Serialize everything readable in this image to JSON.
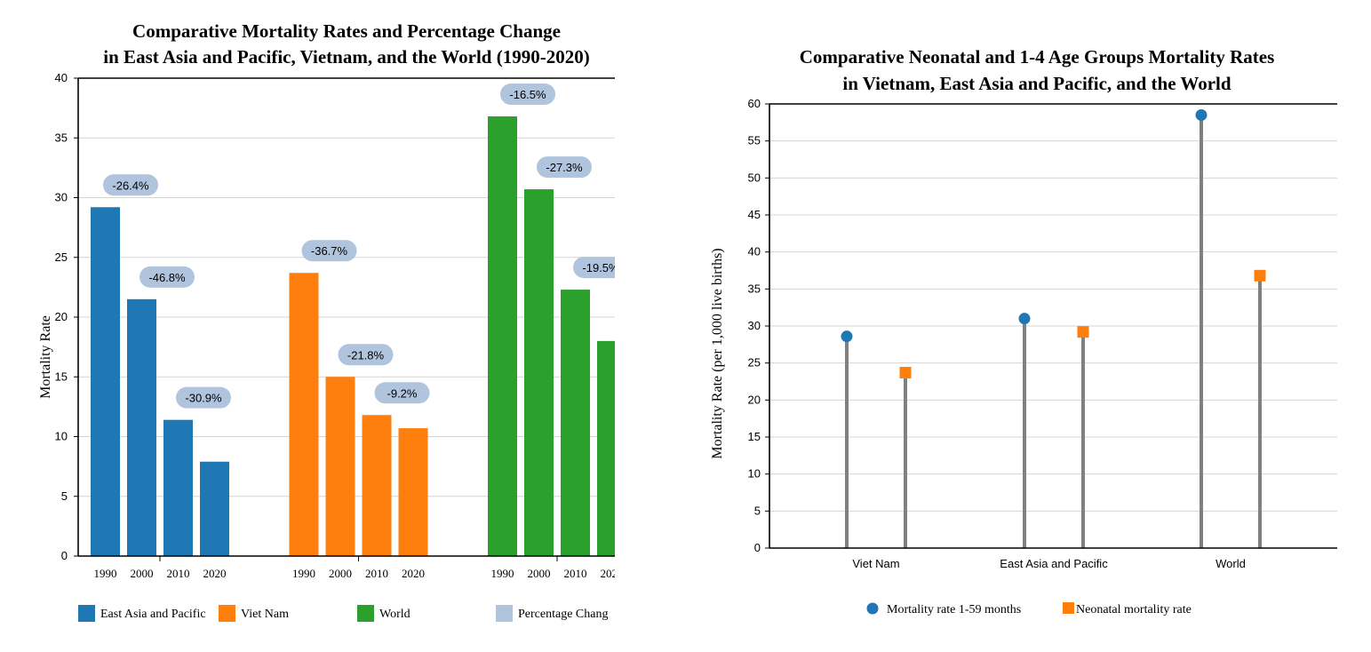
{
  "chart_data": [
    {
      "type": "bar",
      "title_lines": [
        "Comparative Mortality Rates and Percentage Change",
        "in East Asia and Pacific, Vietnam, and the World (1990-2020)"
      ],
      "ylabel": "Mortality Rate",
      "xlabel": "",
      "ylim": [
        0,
        40
      ],
      "yticks": [
        0,
        5,
        10,
        15,
        20,
        25,
        30,
        35,
        40
      ],
      "grid": true,
      "legend_position": "bottom",
      "categories": [
        "1990",
        "2000",
        "2010",
        "2020"
      ],
      "series": [
        {
          "name": "East Asia and Pacific",
          "color": "#1f77b4",
          "values": [
            29.2,
            21.5,
            11.4,
            7.9
          ],
          "pct_change": [
            "-26.4%",
            "-46.8%",
            "-30.9%"
          ]
        },
        {
          "name": "Viet Nam",
          "color": "#ff7f0e",
          "values": [
            23.7,
            15.0,
            11.8,
            10.7
          ],
          "pct_change": [
            "-36.7%",
            "-21.8%",
            "-9.2%"
          ]
        },
        {
          "name": "World",
          "color": "#2ca02c",
          "values": [
            36.8,
            30.7,
            22.3,
            18.0
          ],
          "pct_change": [
            "-16.5%",
            "-27.3%",
            "-19.5%"
          ]
        }
      ],
      "legend": [
        {
          "label": "East Asia and Pacific",
          "color": "#1f77b4"
        },
        {
          "label": "Viet Nam",
          "color": "#ff7f0e"
        },
        {
          "label": "World",
          "color": "#2ca02c"
        },
        {
          "label": "Percentage Chang",
          "color": "#b0c4de"
        }
      ]
    },
    {
      "type": "scatter",
      "title_lines": [
        "Comparative Neonatal and 1-4 Age Groups Mortality Rates",
        "in Vietnam, East Asia and Pacific, and the World"
      ],
      "ylabel": "Mortality Rate (per 1,000 live births)",
      "xlabel": "",
      "ylim": [
        0,
        60
      ],
      "yticks": [
        0,
        5,
        10,
        15,
        20,
        25,
        30,
        35,
        40,
        45,
        50,
        55,
        60
      ],
      "grid": true,
      "legend_position": "bottom",
      "categories": [
        "Viet Nam",
        "East Asia and Pacific",
        "World"
      ],
      "series": [
        {
          "name": "Mortality rate 1-59 months",
          "color": "#1f77b4",
          "marker": "circle",
          "values": [
            28.6,
            31.0,
            58.5
          ]
        },
        {
          "name": "Neonatal mortality rate",
          "color": "#ff7f0e",
          "marker": "square",
          "values": [
            23.7,
            29.2,
            36.8
          ]
        }
      ]
    }
  ]
}
